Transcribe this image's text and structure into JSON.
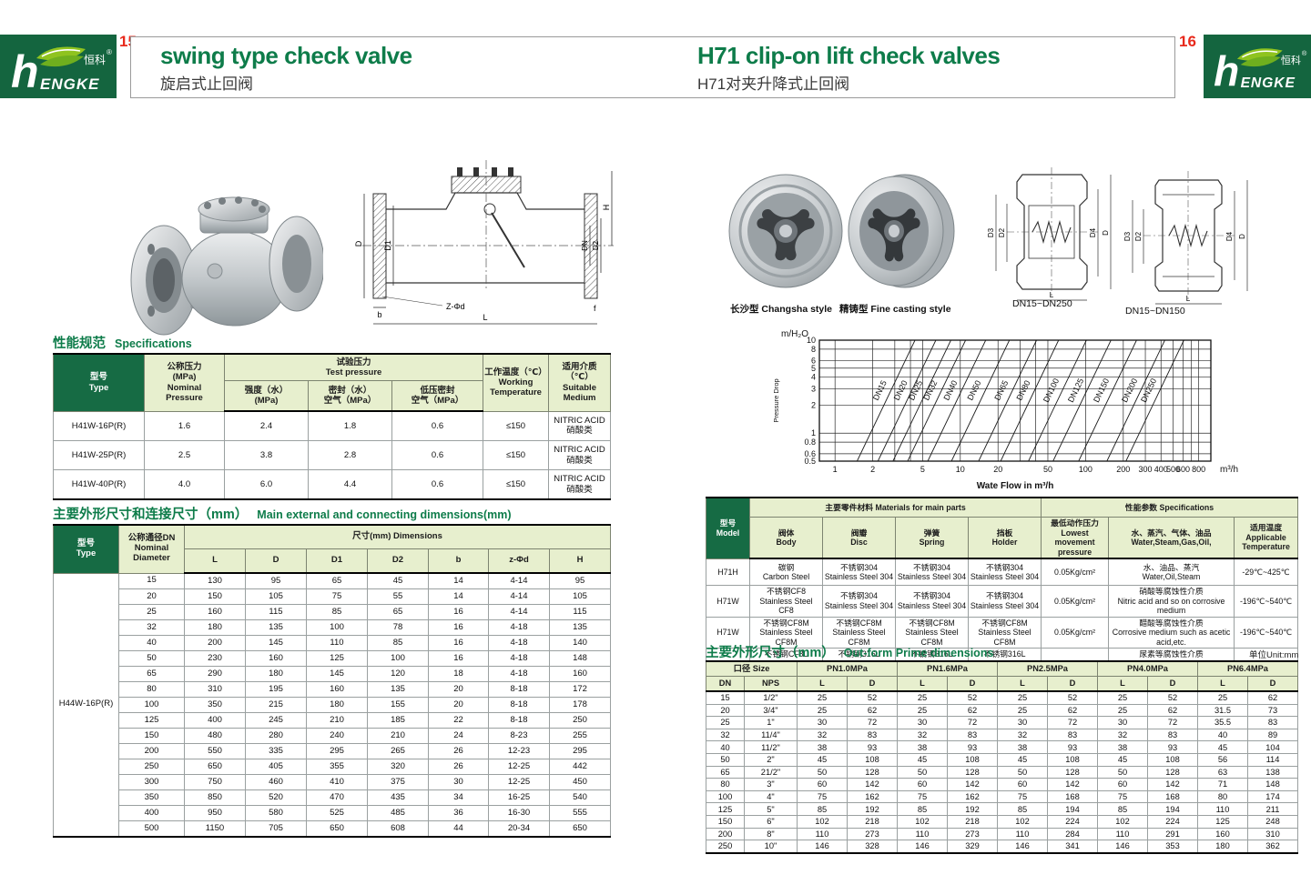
{
  "header": {
    "left_page_number": "15",
    "right_page_number": "16",
    "left_title": "swing type check valve",
    "left_subtitle": "旋启式止回阀",
    "right_title": "H71 clip-on lift check valves",
    "right_subtitle": "H71对夹升降式止回阀"
  },
  "logo": {
    "initial": "h",
    "brand_en": "ENGKE",
    "brand_cn": "恒科",
    "reg": "®"
  },
  "colors": {
    "dark_green": "#14653F",
    "table_green": "#166B44",
    "light_green": "#E7EFCE",
    "title_green": "#0E7C4A",
    "accent_red": "#E8291C"
  },
  "left_page": {
    "spec_section": {
      "title_cn": "性能规范",
      "title_en": "Specifications"
    },
    "spec_table": {
      "h": {
        "type": "型号\nType",
        "nominal": "公称压力\n(MPa)\nNominal\nPressure",
        "test": "试验压力\nTest pressure",
        "strength": "强度（水）\n(MPa)",
        "seal": "密封（水）\n空气（MPa）",
        "low_seal": "低压密封\n空气（MPa）",
        "temp": "工作温度（℃）\nWorking\nTemperature",
        "medium": "适用介质（℃）\nSuitable\nMedium"
      },
      "rows": [
        [
          "H41W-16P(R)",
          "1.6",
          "2.4",
          "1.8",
          "0.6",
          "≤150",
          "NITRIC ACID\n硝酸类"
        ],
        [
          "H41W-25P(R)",
          "2.5",
          "3.8",
          "2.8",
          "0.6",
          "≤150",
          "NITRIC ACID\n硝酸类"
        ],
        [
          "H41W-40P(R)",
          "4.0",
          "6.0",
          "4.4",
          "0.6",
          "≤150",
          "NITRIC ACID\n硝酸类"
        ]
      ]
    },
    "dim_section": {
      "title_cn": "主要外形尺寸和连接尺寸（mm）",
      "title_en": "Main external and connecting dimensions(mm)"
    },
    "dim_table": {
      "h": {
        "type": "型号\nType",
        "dn": "公称通径DN\nNominal\nDiameter",
        "dims": "尺寸(mm) Dimensions",
        "cols": [
          "L",
          "D",
          "D1",
          "D2",
          "b",
          "z-Φd",
          "H"
        ]
      },
      "type_label": "H44W-16P(R)",
      "rows": [
        [
          "15",
          "130",
          "95",
          "65",
          "45",
          "14",
          "4-14",
          "95"
        ],
        [
          "20",
          "150",
          "105",
          "75",
          "55",
          "14",
          "4-14",
          "105"
        ],
        [
          "25",
          "160",
          "115",
          "85",
          "65",
          "16",
          "4-14",
          "115"
        ],
        [
          "32",
          "180",
          "135",
          "100",
          "78",
          "16",
          "4-18",
          "135"
        ],
        [
          "40",
          "200",
          "145",
          "110",
          "85",
          "16",
          "4-18",
          "140"
        ],
        [
          "50",
          "230",
          "160",
          "125",
          "100",
          "16",
          "4-18",
          "148"
        ],
        [
          "65",
          "290",
          "180",
          "145",
          "120",
          "18",
          "4-18",
          "160"
        ],
        [
          "80",
          "310",
          "195",
          "160",
          "135",
          "20",
          "8-18",
          "172"
        ],
        [
          "100",
          "350",
          "215",
          "180",
          "155",
          "20",
          "8-18",
          "178"
        ],
        [
          "125",
          "400",
          "245",
          "210",
          "185",
          "22",
          "8-18",
          "250"
        ],
        [
          "150",
          "480",
          "280",
          "240",
          "210",
          "24",
          "8-23",
          "255"
        ],
        [
          "200",
          "550",
          "335",
          "295",
          "265",
          "26",
          "12-23",
          "295"
        ],
        [
          "250",
          "650",
          "405",
          "355",
          "320",
          "26",
          "12-25",
          "442"
        ],
        [
          "300",
          "750",
          "460",
          "410",
          "375",
          "30",
          "12-25",
          "450"
        ],
        [
          "350",
          "850",
          "520",
          "470",
          "435",
          "34",
          "16-25",
          "540"
        ],
        [
          "400",
          "950",
          "580",
          "525",
          "485",
          "36",
          "16-30",
          "555"
        ],
        [
          "500",
          "1150",
          "705",
          "650",
          "608",
          "44",
          "20-34",
          "650"
        ]
      ]
    },
    "drawing_labels": {
      "d": "D",
      "d1": "D1",
      "dn": "DN",
      "d2": "D2",
      "h": "H",
      "l": "L",
      "b": "b",
      "zd": "Z-Φd",
      "f": "f"
    }
  },
  "right_page": {
    "caption_changsha": "长沙型 Changsha style",
    "caption_fine": "精铸型 Fine casting style",
    "caption_dn250": "DN15~DN250",
    "caption_dn150": "DN15~DN150",
    "materials_table": {
      "h": {
        "model": "型号\nModel",
        "main_parts": "主要零件材料 Materials for main parts",
        "body": "阀体\nBody",
        "disc": "阀瓣\nDisc",
        "spring": "弹簧\nSpring",
        "holder": "挡板\nHolder",
        "specs": "性能参数 Specifications",
        "pressure": "最低动作压力\nLowest movement\npressure",
        "medium": "水、蒸汽、气体、油品\nWater,Steam,Gas,Oil,",
        "temp": "适用温度\nApplicable\nTemperature"
      },
      "rows": [
        [
          "H71H",
          "碳钢\nCarbon Steel",
          "不锈钢304\nStainless Steel 304",
          "不锈钢304\nStainless Steel 304",
          "不锈钢304\nStainless Steel 304",
          "0.05Kg/cm²",
          "水、油品、蒸汽\nWater,Oil,Steam",
          "-29℃~425℃"
        ],
        [
          "H71W",
          "不锈钢CF8\nStainless Steel CF8",
          "不锈钢304\nStainless Steel 304",
          "不锈钢304\nStainless Steel 304",
          "不锈钢304\nStainless Steel 304",
          "0.05Kg/cm²",
          "硝酸等腐蚀性介质\nNitric acid and so on corrosive medium",
          "-196℃~540℃"
        ],
        [
          "H71W",
          "不锈钢CF8M\nStainless Steel CF8M",
          "不锈钢CF8M\nStainless Steel CF8M",
          "不锈钢CF8M\nStainless Steel CF8M",
          "不锈钢CF8M\nStainless Steel CF8M",
          "0.05Kg/cm²",
          "醋酸等腐蚀性介质\nCorrosive medium such as acetic acid,etc.",
          "-196℃~540℃"
        ],
        [
          "H71W",
          "不锈钢CF8L\nStainless Steel CF8L",
          "不锈钢316L\nStainless Steel 316L",
          "不锈钢316L\nStainless Steel 316L",
          "不锈钢316L\nStainless Steel 316L",
          "0.05Kg/cm²",
          "尿素等腐蚀性介质\nCorrosive medium such as urea,etc.",
          "-196℃~455℃"
        ]
      ]
    },
    "outform_section": {
      "title_cn": "主要外形尺寸（mm）",
      "title_en": "Out-form Prime dimensions",
      "unit_note": "单位Unit:mm"
    },
    "outform_table": {
      "group_headers": [
        "口径 Size",
        "PN1.0MPa",
        "PN1.6MPa",
        "PN2.5MPa",
        "PN4.0MPa",
        "PN6.4MPa"
      ],
      "sub_headers": [
        "DN",
        "NPS",
        "L",
        "D",
        "L",
        "D",
        "L",
        "D",
        "L",
        "D",
        "L",
        "D"
      ],
      "rows": [
        [
          "15",
          "1/2\"",
          "25",
          "52",
          "25",
          "52",
          "25",
          "52",
          "25",
          "52",
          "25",
          "62"
        ],
        [
          "20",
          "3/4\"",
          "25",
          "62",
          "25",
          "62",
          "25",
          "62",
          "25",
          "62",
          "31.5",
          "73"
        ],
        [
          "25",
          "1\"",
          "30",
          "72",
          "30",
          "72",
          "30",
          "72",
          "30",
          "72",
          "35.5",
          "83"
        ],
        [
          "32",
          "11/4\"",
          "32",
          "83",
          "32",
          "83",
          "32",
          "83",
          "32",
          "83",
          "40",
          "89"
        ],
        [
          "40",
          "11/2\"",
          "38",
          "93",
          "38",
          "93",
          "38",
          "93",
          "38",
          "93",
          "45",
          "104"
        ],
        [
          "50",
          "2\"",
          "45",
          "108",
          "45",
          "108",
          "45",
          "108",
          "45",
          "108",
          "56",
          "114"
        ],
        [
          "65",
          "21/2\"",
          "50",
          "128",
          "50",
          "128",
          "50",
          "128",
          "50",
          "128",
          "63",
          "138"
        ],
        [
          "80",
          "3\"",
          "60",
          "142",
          "60",
          "142",
          "60",
          "142",
          "60",
          "142",
          "71",
          "148"
        ],
        [
          "100",
          "4\"",
          "75",
          "162",
          "75",
          "162",
          "75",
          "168",
          "75",
          "168",
          "80",
          "174"
        ],
        [
          "125",
          "5\"",
          "85",
          "192",
          "85",
          "192",
          "85",
          "194",
          "85",
          "194",
          "110",
          "211"
        ],
        [
          "150",
          "6\"",
          "102",
          "218",
          "102",
          "218",
          "102",
          "224",
          "102",
          "224",
          "125",
          "248"
        ],
        [
          "200",
          "8\"",
          "110",
          "273",
          "110",
          "273",
          "110",
          "284",
          "110",
          "291",
          "160",
          "310"
        ],
        [
          "250",
          "10\"",
          "146",
          "328",
          "146",
          "329",
          "146",
          "341",
          "146",
          "353",
          "180",
          "362"
        ]
      ]
    },
    "drawing_labels": {
      "d3": "D3",
      "d2": "D2",
      "d4": "D4",
      "d": "D",
      "l": "L"
    }
  },
  "chart_data": {
    "type": "line",
    "title": "",
    "ylabel": "Pressure Drop",
    "y_unit_label": "m/H₂O",
    "xlabel": "Wate Flow in m³/h",
    "x_unit_label": "m³/h",
    "log_x": true,
    "log_y": true,
    "xlim": [
      0.75,
      1000
    ],
    "ylim": [
      0.5,
      10
    ],
    "x_ticks": [
      1,
      2,
      5,
      10,
      20,
      50,
      100,
      200,
      300,
      400,
      500,
      600,
      800
    ],
    "x_gridlines": [
      1,
      2,
      3,
      4,
      5,
      10,
      20,
      30,
      40,
      50,
      100,
      200,
      300,
      400,
      500,
      600,
      700,
      800
    ],
    "y_ticks": [
      0.5,
      0.6,
      0.8,
      1,
      2,
      3,
      4,
      5,
      6,
      8,
      10
    ],
    "grid": true,
    "legend_position": "on-line-labels",
    "series": [
      {
        "name": "DN15",
        "x_at_y0_5": 1.5
      },
      {
        "name": "DN20",
        "x_at_y0_5": 2.2
      },
      {
        "name": "DN25",
        "x_at_y0_5": 2.9
      },
      {
        "name": "DN32",
        "x_at_y0_5": 3.8
      },
      {
        "name": "DN40",
        "x_at_y0_5": 5.5
      },
      {
        "name": "DN50",
        "x_at_y0_5": 8.5
      },
      {
        "name": "DN65",
        "x_at_y0_5": 14
      },
      {
        "name": "DN80",
        "x_at_y0_5": 21
      },
      {
        "name": "DN100",
        "x_at_y0_5": 35
      },
      {
        "name": "DN125",
        "x_at_y0_5": 55
      },
      {
        "name": "DN150",
        "x_at_y0_5": 88
      },
      {
        "name": "DN200",
        "x_at_y0_5": 148
      },
      {
        "name": "DN250",
        "x_at_y0_5": 210
      }
    ],
    "slope_x_factor_top": 2.9
  }
}
